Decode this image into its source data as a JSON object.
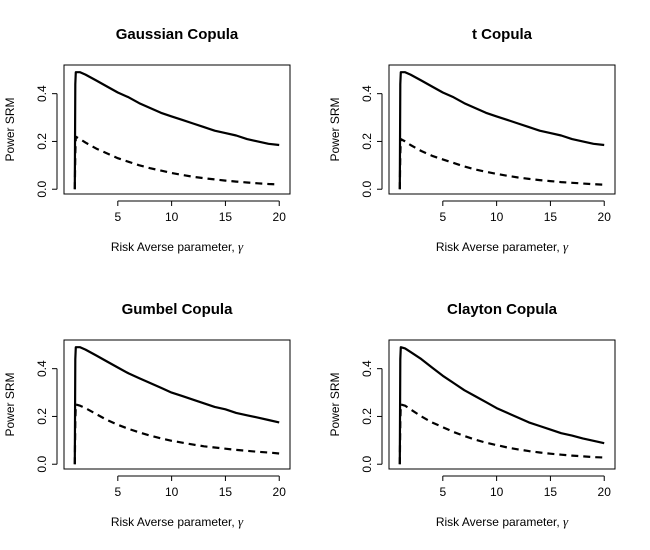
{
  "chart_data": [
    {
      "type": "line",
      "title": "Gaussian Copula",
      "xlabel": "Risk Averse parameter, ",
      "xlabel_symbol": "γ",
      "ylabel": "Power SRM",
      "xlim": [
        0,
        21
      ],
      "ylim": [
        -0.02,
        0.52
      ],
      "xticks": [
        5,
        10,
        15,
        20
      ],
      "yticks": [
        0.0,
        0.2,
        0.4
      ],
      "ytick_labels": [
        "0.0",
        "0.2",
        "0.4"
      ],
      "series": [
        {
          "style": "solid",
          "x": [
            1,
            1.05,
            1.1,
            1.5,
            2,
            3,
            4,
            5,
            6,
            7,
            8,
            9,
            10,
            11,
            12,
            13,
            14,
            15,
            16,
            17,
            18,
            19,
            20
          ],
          "y": [
            0.0,
            0.44,
            0.49,
            0.49,
            0.48,
            0.455,
            0.43,
            0.405,
            0.385,
            0.36,
            0.34,
            0.32,
            0.305,
            0.29,
            0.275,
            0.26,
            0.245,
            0.235,
            0.225,
            0.21,
            0.2,
            0.19,
            0.185
          ]
        },
        {
          "style": "dashed",
          "x": [
            1,
            1.05,
            1.1,
            1.5,
            2,
            3,
            4,
            5,
            6,
            7,
            8,
            9,
            10,
            11,
            12,
            13,
            14,
            15,
            16,
            17,
            18,
            19,
            20
          ],
          "y": [
            0.0,
            0.15,
            0.22,
            0.21,
            0.195,
            0.17,
            0.15,
            0.13,
            0.115,
            0.1,
            0.088,
            0.078,
            0.068,
            0.06,
            0.052,
            0.046,
            0.041,
            0.036,
            0.032,
            0.028,
            0.025,
            0.022,
            0.02
          ]
        }
      ]
    },
    {
      "type": "line",
      "title": "t Copula",
      "xlabel": "Risk Averse parameter, ",
      "xlabel_symbol": "γ",
      "ylabel": "Power SRM",
      "xlim": [
        0,
        21
      ],
      "ylim": [
        -0.02,
        0.52
      ],
      "xticks": [
        5,
        10,
        15,
        20
      ],
      "yticks": [
        0.0,
        0.2,
        0.4
      ],
      "ytick_labels": [
        "0.0",
        "0.2",
        "0.4"
      ],
      "series": [
        {
          "style": "solid",
          "x": [
            1,
            1.05,
            1.1,
            1.5,
            2,
            3,
            4,
            5,
            6,
            7,
            8,
            9,
            10,
            11,
            12,
            13,
            14,
            15,
            16,
            17,
            18,
            19,
            20
          ],
          "y": [
            0.0,
            0.44,
            0.49,
            0.49,
            0.48,
            0.455,
            0.43,
            0.405,
            0.385,
            0.36,
            0.34,
            0.32,
            0.305,
            0.29,
            0.275,
            0.26,
            0.245,
            0.235,
            0.225,
            0.21,
            0.2,
            0.19,
            0.185
          ]
        },
        {
          "style": "dashed",
          "x": [
            1,
            1.05,
            1.1,
            1.5,
            2,
            3,
            4,
            5,
            6,
            7,
            8,
            9,
            10,
            11,
            12,
            13,
            14,
            15,
            16,
            17,
            18,
            19,
            20
          ],
          "y": [
            0.0,
            0.15,
            0.21,
            0.2,
            0.185,
            0.16,
            0.14,
            0.125,
            0.11,
            0.095,
            0.083,
            0.073,
            0.064,
            0.056,
            0.049,
            0.043,
            0.038,
            0.034,
            0.03,
            0.027,
            0.024,
            0.021,
            0.019
          ]
        }
      ]
    },
    {
      "type": "line",
      "title": "Gumbel Copula",
      "xlabel": "Risk Averse parameter, ",
      "xlabel_symbol": "γ",
      "ylabel": "Power SRM",
      "xlim": [
        0,
        21
      ],
      "ylim": [
        -0.02,
        0.52
      ],
      "xticks": [
        5,
        10,
        15,
        20
      ],
      "yticks": [
        0.0,
        0.2,
        0.4
      ],
      "ytick_labels": [
        "0.0",
        "0.2",
        "0.4"
      ],
      "series": [
        {
          "style": "solid",
          "x": [
            1,
            1.05,
            1.1,
            1.5,
            2,
            3,
            4,
            5,
            6,
            7,
            8,
            9,
            10,
            11,
            12,
            13,
            14,
            15,
            16,
            17,
            18,
            19,
            20
          ],
          "y": [
            0.0,
            0.44,
            0.49,
            0.49,
            0.48,
            0.455,
            0.43,
            0.405,
            0.38,
            0.36,
            0.34,
            0.32,
            0.3,
            0.285,
            0.27,
            0.255,
            0.24,
            0.23,
            0.215,
            0.205,
            0.195,
            0.185,
            0.175
          ]
        },
        {
          "style": "dashed",
          "x": [
            1,
            1.05,
            1.1,
            1.5,
            2,
            3,
            4,
            5,
            6,
            7,
            8,
            9,
            10,
            11,
            12,
            13,
            14,
            15,
            16,
            17,
            18,
            19,
            20
          ],
          "y": [
            0.0,
            0.18,
            0.25,
            0.245,
            0.235,
            0.21,
            0.185,
            0.165,
            0.148,
            0.133,
            0.12,
            0.108,
            0.098,
            0.09,
            0.082,
            0.075,
            0.07,
            0.065,
            0.06,
            0.056,
            0.052,
            0.049,
            0.045
          ]
        }
      ]
    },
    {
      "type": "line",
      "title": "Clayton Copula",
      "xlabel": "Risk Averse parameter, ",
      "xlabel_symbol": "γ",
      "ylabel": "Power SRM",
      "xlim": [
        0,
        21
      ],
      "ylim": [
        -0.02,
        0.52
      ],
      "xticks": [
        5,
        10,
        15,
        20
      ],
      "yticks": [
        0.0,
        0.2,
        0.4
      ],
      "ytick_labels": [
        "0.0",
        "0.2",
        "0.4"
      ],
      "series": [
        {
          "style": "solid",
          "x": [
            1,
            1.05,
            1.1,
            1.5,
            2,
            3,
            4,
            5,
            6,
            7,
            8,
            9,
            10,
            11,
            12,
            13,
            14,
            15,
            16,
            17,
            18,
            19,
            20
          ],
          "y": [
            0.0,
            0.44,
            0.49,
            0.485,
            0.47,
            0.44,
            0.405,
            0.37,
            0.34,
            0.31,
            0.285,
            0.26,
            0.235,
            0.215,
            0.195,
            0.175,
            0.16,
            0.145,
            0.13,
            0.12,
            0.108,
            0.098,
            0.088
          ]
        },
        {
          "style": "dashed",
          "x": [
            1,
            1.05,
            1.1,
            1.5,
            2,
            3,
            4,
            5,
            6,
            7,
            8,
            9,
            10,
            11,
            12,
            13,
            14,
            15,
            16,
            17,
            18,
            19,
            20
          ],
          "y": [
            0.0,
            0.18,
            0.25,
            0.245,
            0.23,
            0.2,
            0.175,
            0.155,
            0.135,
            0.118,
            0.103,
            0.09,
            0.08,
            0.07,
            0.062,
            0.055,
            0.049,
            0.044,
            0.04,
            0.036,
            0.033,
            0.03,
            0.028
          ]
        }
      ]
    }
  ]
}
